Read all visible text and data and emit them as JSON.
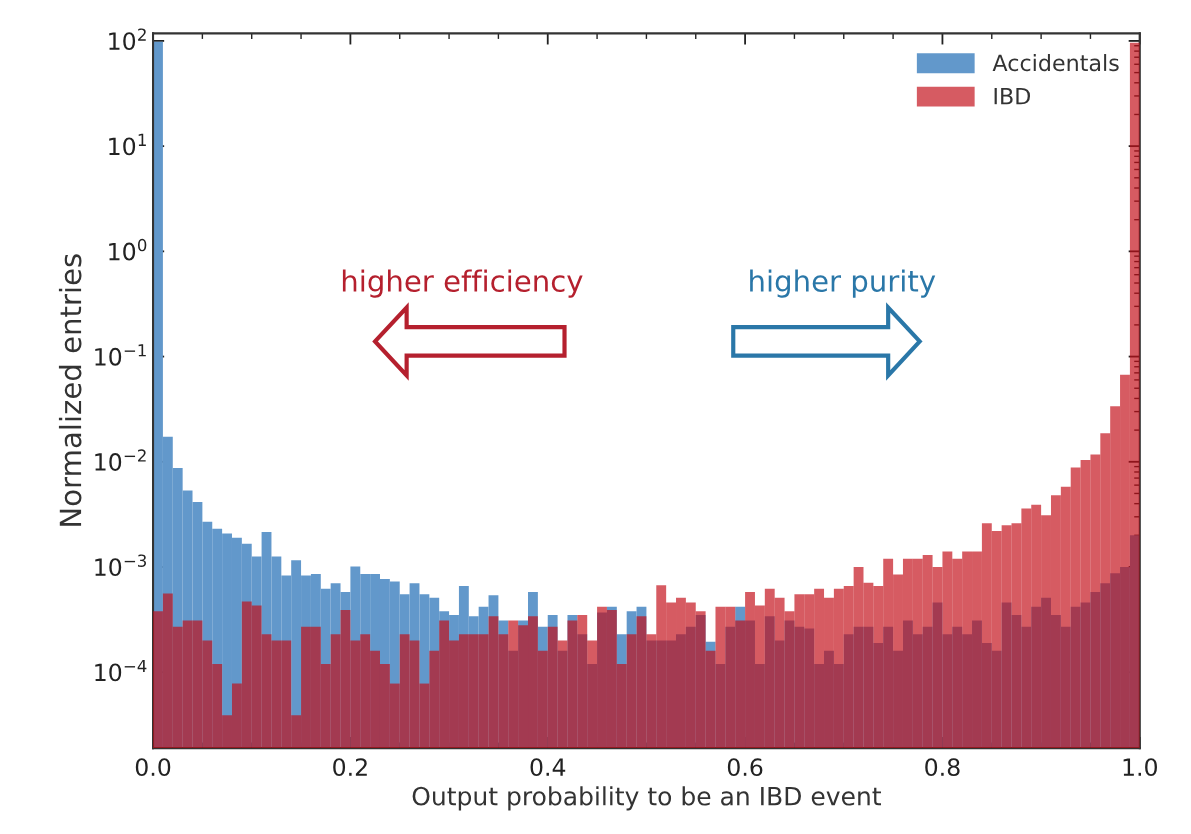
{
  "chart_data": {
    "type": "histogram",
    "xlabel": "Output probability to be an IBD event",
    "ylabel": "Normalized entries",
    "annotations": [
      "higher efficiency",
      "higher purity"
    ],
    "bins": [
      0,
      0.01,
      0.02,
      0.03,
      0.04,
      0.05,
      0.06,
      0.07,
      0.08,
      0.09,
      0.1,
      0.11,
      0.12,
      0.13,
      0.14,
      0.15,
      0.16,
      0.17,
      0.18,
      0.19,
      0.2,
      0.21,
      0.22,
      0.23,
      0.24,
      0.25,
      0.26,
      0.27,
      0.28,
      0.29,
      0.3,
      0.31,
      0.32,
      0.33,
      0.34,
      0.35,
      0.36,
      0.37,
      0.38,
      0.39,
      0.4,
      0.41,
      0.42,
      0.43,
      0.44,
      0.45,
      0.46,
      0.47,
      0.48,
      0.49,
      0.5,
      0.51,
      0.52,
      0.53,
      0.54,
      0.55,
      0.56,
      0.57,
      0.58,
      0.59,
      0.6,
      0.61,
      0.62,
      0.63,
      0.64,
      0.65,
      0.66,
      0.67,
      0.68,
      0.69,
      0.7,
      0.71,
      0.72,
      0.73,
      0.74,
      0.75,
      0.76,
      0.77,
      0.78,
      0.79,
      0.8,
      0.81,
      0.82,
      0.83,
      0.84,
      0.85,
      0.86,
      0.87,
      0.88,
      0.89,
      0.9,
      0.91,
      0.92,
      0.93,
      0.94,
      0.95,
      0.96,
      0.97,
      0.98,
      0.99,
      1.0
    ],
    "series": [
      {
        "name": "Accidentals",
        "color": "#6298cb",
        "values": [
          98,
          0.0173,
          0.00875,
          0.00533,
          0.00414,
          0.00269,
          0.00231,
          0.00208,
          0.0019,
          0.00166,
          0.00126,
          0.00215,
          0.00126,
          0.00083,
          0.00116,
          0.00083,
          0.00086,
          0.00062,
          0.0007,
          0.00058,
          0.00101,
          0.00086,
          0.00086,
          0.00077,
          0.00073,
          0.00055,
          0.0007,
          0.00055,
          0.00051,
          0.00038,
          0.00035,
          0.00066,
          0.00034,
          0.00042,
          0.00054,
          0.00031,
          0.00016,
          0.00031,
          0.00058,
          0.00027,
          0.00035,
          0.00016,
          0.00035,
          0.00023,
          0.00012,
          0.00037,
          0.00042,
          0.00023,
          0.00038,
          0.00042,
          0.0002,
          0.0002,
          0.0002,
          0.00023,
          0.00027,
          0.00035,
          0.000195,
          0.00012,
          0.00027,
          0.00042,
          0.00031,
          0.00012,
          0.00034,
          0.0002,
          0.00031,
          0.00027,
          0.00026,
          0.00012,
          0.00016,
          0.00012,
          0.00023,
          0.00027,
          0.00027,
          0.00019,
          0.00027,
          0.00016,
          0.00031,
          0.00023,
          0.00027,
          0.00046,
          0.00023,
          0.00027,
          0.00023,
          0.00031,
          0.00019,
          0.00016,
          0.00046,
          0.00035,
          0.00027,
          0.00042,
          0.00051,
          0.00035,
          0.00027,
          0.00042,
          0.00046,
          0.00058,
          0.0007,
          0.00087,
          0.001,
          0.002
        ]
      },
      {
        "name": "IBD",
        "color": "#c30e17",
        "values": [
          0.00038,
          0.00056,
          0.00027,
          0.00031,
          0.00031,
          0.0002,
          0.00012,
          3.9e-05,
          7.8e-05,
          0.00047,
          0.00043,
          0.00023,
          0.0002,
          0.0002,
          3.9e-05,
          0.00027,
          0.00027,
          0.00012,
          0.00023,
          0.00039,
          0.0002,
          0.00023,
          0.00016,
          0.00012,
          7.8e-05,
          0.00023,
          0.0002,
          7.8e-05,
          0.00016,
          0.00031,
          0.0002,
          0.00023,
          0.00023,
          0.00023,
          0.00034,
          0.00023,
          0.00031,
          0.00028,
          0.00034,
          0.00016,
          0.00027,
          0.0002,
          0.00031,
          0.00035,
          0.0002,
          0.00042,
          0.00039,
          0.00012,
          0.00023,
          0.00034,
          0.00023,
          0.00067,
          0.00046,
          0.00051,
          0.00046,
          0.00038,
          0.00016,
          0.00042,
          0.00042,
          0.00031,
          0.00058,
          0.00043,
          0.00062,
          0.00051,
          0.00038,
          0.00055,
          0.00055,
          0.00062,
          0.00051,
          0.00062,
          0.00066,
          0.001,
          0.00071,
          0.00066,
          0.0012,
          0.00085,
          0.0012,
          0.0012,
          0.0013,
          0.001,
          0.0014,
          0.0012,
          0.0014,
          0.0014,
          0.0026,
          0.0022,
          0.0025,
          0.0026,
          0.0036,
          0.0039,
          0.0031,
          0.0048,
          0.0058,
          0.0088,
          0.0104,
          0.0117,
          0.0187,
          0.0337,
          0.067,
          96
        ]
      }
    ],
    "log": "y",
    "xlim": [
      0,
      1.0
    ],
    "xticks": [
      {
        "value": 0,
        "label": "0.0"
      },
      {
        "value": 0.05,
        "label": null
      },
      {
        "value": 0.1,
        "label": null
      },
      {
        "value": 0.15,
        "label": null
      },
      {
        "value": 0.2,
        "label": "0.2"
      },
      {
        "value": 0.25,
        "label": null
      },
      {
        "value": 0.3,
        "label": null
      },
      {
        "value": 0.35,
        "label": null
      },
      {
        "value": 0.4,
        "label": "0.4"
      },
      {
        "value": 0.45,
        "label": null
      },
      {
        "value": 0.5,
        "label": null
      },
      {
        "value": 0.55,
        "label": null
      },
      {
        "value": 0.6,
        "label": "0.6"
      },
      {
        "value": 0.65,
        "label": null
      },
      {
        "value": 0.7,
        "label": null
      },
      {
        "value": 0.75,
        "label": null
      },
      {
        "value": 0.8,
        "label": "0.8"
      },
      {
        "value": 0.85,
        "label": null
      },
      {
        "value": 0.9,
        "label": null
      },
      {
        "value": 0.95,
        "label": null
      },
      {
        "value": 1.0,
        "label": "1.0"
      }
    ],
    "ylim": [
      1.9e-05,
      118
    ],
    "yticks": [
      {
        "value": 0.0001,
        "label": "10$^{−4}$"
      },
      {
        "value": 0.001,
        "label": "10$^{−3}$"
      },
      {
        "value": 0.01,
        "label": "10$^{−2}$"
      },
      {
        "value": 0.1,
        "label": "10$^{−1}$"
      },
      {
        "value": 1,
        "label": "10$^{0}$"
      },
      {
        "value": 10,
        "label": "10$^{1}$"
      },
      {
        "value": 100,
        "label": "10$^{2}$"
      }
    ],
    "legend": "top right",
    "grid": false
  }
}
